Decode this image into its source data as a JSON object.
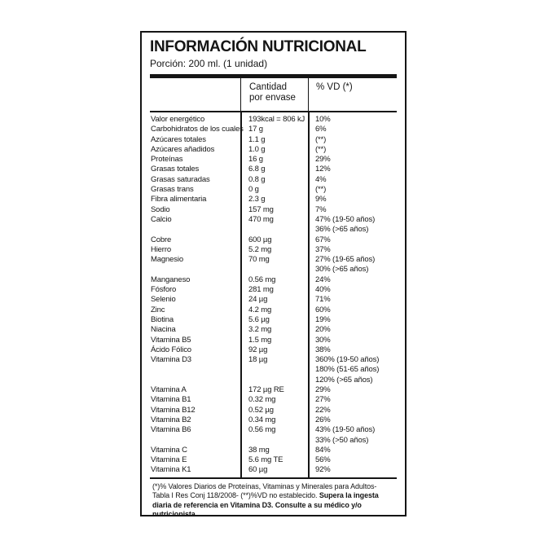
{
  "label": {
    "title": "INFORMACIÓN NUTRICIONAL",
    "portion": "Porción: 200 ml. (1 unidad)",
    "columns": {
      "amount_line1": "Cantidad",
      "amount_line2": "por envase",
      "vd": "% VD (*)"
    },
    "rows": [
      {
        "name": "Valor energético",
        "amount": "193kcal = 806 kJ",
        "vd": [
          "10%"
        ]
      },
      {
        "name": "Carbohidratos de los cuales",
        "amount": "17 g",
        "vd": [
          "6%"
        ]
      },
      {
        "name": "Azúcares totales",
        "amount": "1.1 g",
        "vd": [
          "(**)"
        ]
      },
      {
        "name": "Azúcares añadidos",
        "amount": "1.0 g",
        "vd": [
          "(**)"
        ]
      },
      {
        "name": "Proteínas",
        "amount": "16 g",
        "vd": [
          "29%"
        ]
      },
      {
        "name": "Grasas totales",
        "amount": "6.8 g",
        "vd": [
          "12%"
        ]
      },
      {
        "name": "Grasas saturadas",
        "amount": "0.8 g",
        "vd": [
          "4%"
        ]
      },
      {
        "name": "Grasas trans",
        "amount": "0 g",
        "vd": [
          "(**)"
        ]
      },
      {
        "name": "Fibra alimentaria",
        "amount": "2.3 g",
        "vd": [
          "9%"
        ]
      },
      {
        "name": "Sodio",
        "amount": "157 mg",
        "vd": [
          "7%"
        ]
      },
      {
        "name": "Calcio",
        "amount": "470 mg",
        "vd": [
          "47% (19-50 años)",
          "36% (>65 años)"
        ]
      },
      {
        "name": "Cobre",
        "amount": "600 µg",
        "vd": [
          "67%"
        ]
      },
      {
        "name": "Hierro",
        "amount": "5.2 mg",
        "vd": [
          "37%"
        ]
      },
      {
        "name": "Magnesio",
        "amount": "70 mg",
        "vd": [
          "27% (19-65 años)",
          "30% (>65 años)"
        ]
      },
      {
        "name": "Manganeso",
        "amount": "0.56 mg",
        "vd": [
          "24%"
        ]
      },
      {
        "name": "Fósforo",
        "amount": "281 mg",
        "vd": [
          "40%"
        ]
      },
      {
        "name": "Selenio",
        "amount": "24 µg",
        "vd": [
          "71%"
        ]
      },
      {
        "name": "Zinc",
        "amount": "4.2 mg",
        "vd": [
          "60%"
        ]
      },
      {
        "name": "Biotina",
        "amount": "5.6 µg",
        "vd": [
          "19%"
        ]
      },
      {
        "name": "Niacina",
        "amount": "3.2 mg",
        "vd": [
          "20%"
        ]
      },
      {
        "name": "Vitamina B5",
        "amount": "1.5 mg",
        "vd": [
          "30%"
        ]
      },
      {
        "name": "Ácido Fólico",
        "amount": "92 µg",
        "vd": [
          "38%"
        ]
      },
      {
        "name": "Vitamina D3",
        "amount": "18 µg",
        "vd": [
          "360% (19-50 años)",
          "180% (51-65 años)",
          "120% (>65 años)"
        ]
      },
      {
        "name": "Vitamina A",
        "amount": "172 µg RE",
        "vd": [
          "29%"
        ]
      },
      {
        "name": "Vitamina B1",
        "amount": "0.32 mg",
        "vd": [
          "27%"
        ]
      },
      {
        "name": "Vitamina B12",
        "amount": "0.52 µg",
        "vd": [
          "22%"
        ]
      },
      {
        "name": "Vitamina B2",
        "amount": "0.34 mg",
        "vd": [
          "26%"
        ]
      },
      {
        "name": "Vitamina B6",
        "amount": "0.56 mg",
        "vd": [
          "43% (19-50 años)",
          "33% (>50 años)"
        ]
      },
      {
        "name": "Vitamina C",
        "amount": "38 mg",
        "vd": [
          "84%"
        ]
      },
      {
        "name": "Vitamina E",
        "amount": "5.6 mg TE",
        "vd": [
          "56%"
        ]
      },
      {
        "name": "Vitamina K1",
        "amount": "60 µg",
        "vd": [
          "92%"
        ]
      }
    ],
    "footnote": {
      "normal": "(*)% Valores Diarios de Proteínas, Vitaminas y Minerales para Adultos- Tabla I Res Conj 118/2008- (**)%VD no establecido. ",
      "bold": "Supera la ingesta diaria de referencia en Vitamina D3. Consulte a su médico y/o nutricionista."
    },
    "colors": {
      "ink": "#151515",
      "background": "#ffffff"
    }
  }
}
